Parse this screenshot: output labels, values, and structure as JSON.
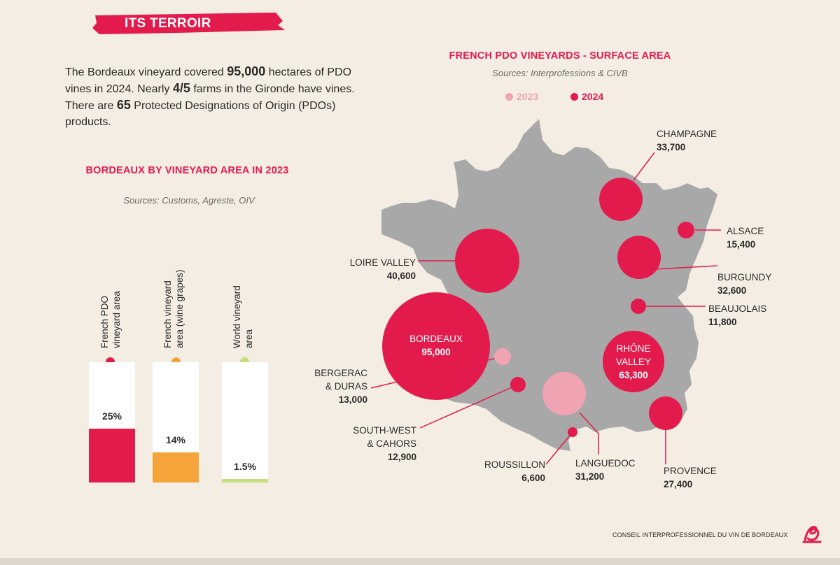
{
  "section_title": "ITS TERROIR",
  "intro": {
    "t1": "The Bordeaux vineyard covered ",
    "b1": "95,000",
    "t2": " hectares of PDO vines in 2024. Nearly ",
    "b2": "4/5",
    "t3": " farms in the Gironde have vines. There are ",
    "b3": "65",
    "t4": " Protected Designations of Origin (PDOs) products."
  },
  "colors": {
    "red": "#e31b4d",
    "pink": "#f0a3b3",
    "orange": "#f5a43a",
    "green": "#c5dd7a",
    "map_gray": "#a8a8a8"
  },
  "chart_data": [
    {
      "type": "bar",
      "title": "BORDEAUX BY VINEYARD AREA IN 2023",
      "subtitle": "Sources: Customs, Agreste, OIV",
      "categories": [
        "French PDO vineyard area",
        "French vineyard area (wine grapes)",
        "World vineyard area"
      ],
      "values": [
        25,
        14,
        1.5
      ],
      "labels": [
        "25%",
        "14%",
        "1.5%"
      ],
      "unit": "%",
      "ylim": [
        0,
        100
      ]
    },
    {
      "type": "bubble-map",
      "title": "FRENCH PDO VINEYARDS - SURFACE AREA",
      "subtitle": "Sources: Interprofessions & CIVB",
      "legend": [
        "2023",
        "2024"
      ],
      "regions": [
        {
          "name": "CHAMPAGNE",
          "value_text": "33,700",
          "value": 33700,
          "year": "2024"
        },
        {
          "name": "ALSACE",
          "value_text": "15,400",
          "value": 15400,
          "year": "2024"
        },
        {
          "name": "BURGUNDY",
          "value_text": "32,600",
          "value": 32600,
          "year": "2024"
        },
        {
          "name": "BEAUJOLAIS",
          "value_text": "11,800",
          "value": 11800,
          "year": "2024"
        },
        {
          "name": "RHÔNE VALLEY",
          "value_text": "63,300",
          "value": 63300,
          "year": "2024"
        },
        {
          "name": "PROVENCE",
          "value_text": "27,400",
          "value": 27400,
          "year": "2024"
        },
        {
          "name": "LANGUEDOC",
          "value_text": "31,200",
          "value": 31200,
          "year": "2023"
        },
        {
          "name": "ROUSSILLON",
          "value_text": "6,600",
          "value": 6600,
          "year": "2024"
        },
        {
          "name": "SOUTH-WEST & CAHORS",
          "value_text": "12,900",
          "value": 12900,
          "year": "2024"
        },
        {
          "name": "BERGERAC & DURAS",
          "value_text": "13,000",
          "value": 13000,
          "year": "2023"
        },
        {
          "name": "BORDEAUX",
          "value_text": "95,000",
          "value": 95000,
          "year": "2024"
        },
        {
          "name": "LOIRE VALLEY",
          "value_text": "40,600",
          "value": 40600,
          "year": "2024"
        }
      ]
    }
  ],
  "bar_text": {
    "c1a": "French PDO",
    "c1b": "vineyard area",
    "c2a": "French vineyard",
    "c2b": "area (wine grapes)",
    "c3a": "World vineyard",
    "c3b": "area"
  },
  "map_text": {
    "bergerac_a": "BERGERAC",
    "bergerac_b": "& DURAS",
    "sw_a": "SOUTH-WEST",
    "sw_b": "& CAHORS",
    "rhone_a": "RHÔNE",
    "rhone_b": "VALLEY"
  },
  "footer": "CONSEIL INTERPROFESSIONNEL DU VIN DE BORDEAUX"
}
